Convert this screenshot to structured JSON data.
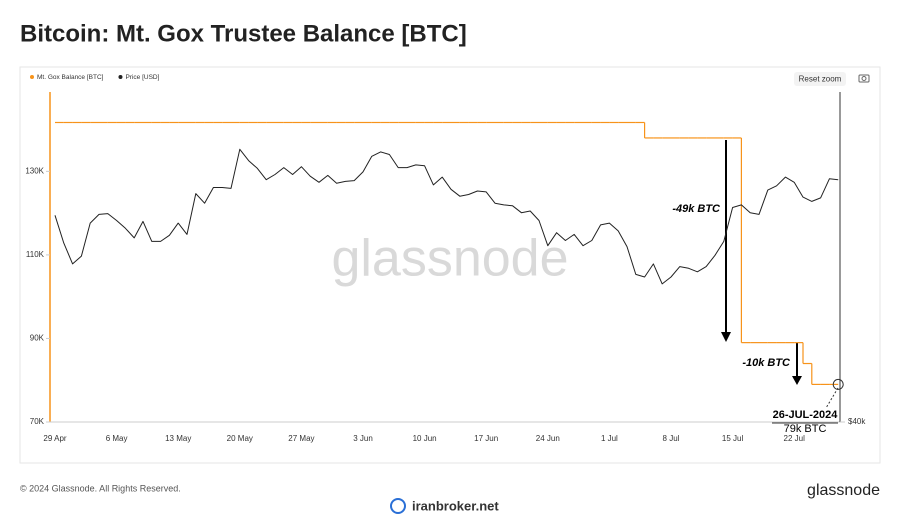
{
  "header": {
    "title": "Bitcoin: Mt. Gox Trustee Balance [BTC]"
  },
  "toolbar": {
    "reset": "Reset zoom"
  },
  "watermark": "glassnode",
  "chart_data": {
    "type": "line",
    "categories": [
      "29 Apr",
      null,
      null,
      null,
      null,
      null,
      null,
      "6 May",
      null,
      null,
      null,
      null,
      null,
      null,
      "13 May",
      null,
      null,
      null,
      null,
      null,
      null,
      "20 May",
      null,
      null,
      null,
      null,
      null,
      null,
      "27 May",
      null,
      null,
      null,
      null,
      null,
      null,
      "3 Jun",
      null,
      null,
      null,
      null,
      null,
      null,
      "10 Jun",
      null,
      null,
      null,
      null,
      null,
      null,
      "17 Jun",
      null,
      null,
      null,
      null,
      null,
      null,
      "24 Jun",
      null,
      null,
      null,
      null,
      null,
      null,
      "1 Jul",
      null,
      null,
      null,
      null,
      null,
      null,
      "8 Jul",
      null,
      null,
      null,
      null,
      null,
      null,
      "15 Jul",
      null,
      null,
      null,
      null,
      null,
      null,
      "22 Jul",
      null,
      null,
      null,
      null,
      null
    ],
    "ylim": [
      70000,
      149000
    ],
    "yticks": [
      {
        "value": 70000,
        "label": "70K"
      },
      {
        "value": 90000,
        "label": "90K"
      },
      {
        "value": 110000,
        "label": "110K"
      },
      {
        "value": 130000,
        "label": "130K"
      }
    ],
    "y2lim": [
      40000,
      78000
    ],
    "y2ticks": [
      {
        "value": 40000,
        "label": "$40k"
      }
    ],
    "grid": false,
    "legend": "top-left",
    "series": [
      {
        "name": "Mt. Gox Balance [BTC]",
        "color": "#f7931a",
        "line_style": "step",
        "values": [
          141700,
          141700,
          141700,
          141700,
          141700,
          141700,
          141700,
          141700,
          141700,
          141700,
          141700,
          141700,
          141700,
          141700,
          141700,
          141700,
          141700,
          141700,
          141700,
          141700,
          141700,
          141700,
          141700,
          141700,
          141700,
          141700,
          141700,
          141700,
          141700,
          141700,
          141700,
          141700,
          141700,
          141700,
          141700,
          141700,
          141700,
          141700,
          141700,
          141700,
          141700,
          141700,
          141700,
          141700,
          141700,
          141700,
          141700,
          141700,
          141700,
          141700,
          141700,
          141700,
          141700,
          141700,
          141700,
          141700,
          141700,
          141700,
          141700,
          141700,
          141700,
          141700,
          141700,
          141700,
          141700,
          141700,
          141700,
          138000,
          138000,
          138000,
          138000,
          138000,
          138000,
          138000,
          138000,
          138000,
          138000,
          138000,
          89000,
          89000,
          89000,
          89000,
          89000,
          89000,
          89000,
          84000,
          79000,
          79000,
          79000,
          79000
        ]
      },
      {
        "name": "Price [USD]",
        "color": "#222222",
        "axis": "y2",
        "values": [
          63800,
          60600,
          58200,
          59100,
          62900,
          63900,
          64000,
          63200,
          62300,
          61200,
          63100,
          60800,
          60800,
          61500,
          62900,
          61600,
          66300,
          65200,
          67000,
          67000,
          66900,
          71400,
          70100,
          69200,
          67900,
          68500,
          69300,
          68500,
          69400,
          68300,
          67600,
          68400,
          67500,
          67700,
          67800,
          68800,
          70600,
          71100,
          70800,
          69300,
          69300,
          69600,
          69500,
          67300,
          68200,
          66800,
          66000,
          66200,
          66600,
          66500,
          65200,
          65000,
          64900,
          64100,
          64300,
          63200,
          60300,
          61800,
          60900,
          61600,
          60300,
          60900,
          62700,
          62900,
          62000,
          60200,
          57000,
          56700,
          58200,
          55900,
          56700,
          57900,
          57700,
          57300,
          57900,
          59200,
          60800,
          64700,
          65000,
          64100,
          63900,
          66700,
          67200,
          68200,
          67600,
          65900,
          65400,
          65800,
          68000,
          67900
        ]
      }
    ],
    "annotations": [
      "-49k BTC",
      "-10k BTC",
      "26-JUL-2024",
      "79k BTC"
    ]
  },
  "footer": {
    "copyright": "© 2024 Glassnode. All Rights Reserved.",
    "logo": "glassnode",
    "source": "iranbroker.net"
  }
}
